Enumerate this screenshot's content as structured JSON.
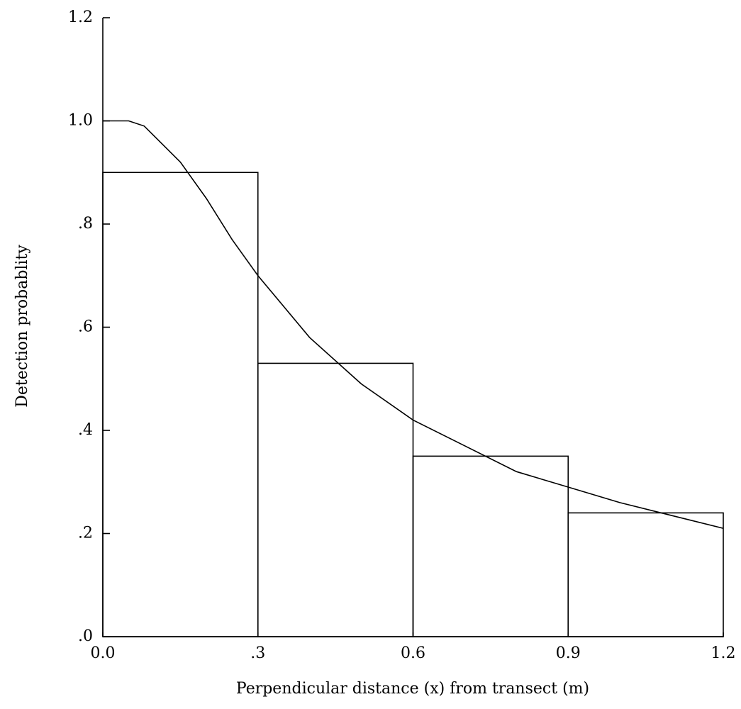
{
  "chart_data": {
    "type": "histogram",
    "xlabel": "Perpendicular distance (x) from transect (m)",
    "ylabel": "Detection probablity",
    "bins": [
      0,
      0.3,
      0.6,
      0.9,
      1.2
    ],
    "values": [
      0.9,
      0.53,
      0.35,
      0.24
    ],
    "color": "#000000",
    "curve": {
      "x": [
        0,
        0.05,
        0.08,
        0.1,
        0.15,
        0.2,
        0.25,
        0.3,
        0.4,
        0.5,
        0.6,
        0.7,
        0.8,
        0.9,
        1.0,
        1.1,
        1.2
      ],
      "values": [
        1.0,
        1.0,
        0.99,
        0.97,
        0.92,
        0.85,
        0.77,
        0.7,
        0.58,
        0.49,
        0.42,
        0.37,
        0.32,
        0.29,
        0.26,
        0.235,
        0.21
      ]
    },
    "xlim": [
      0,
      1.2
    ],
    "xticks": [
      {
        "value": 0,
        "label": "0.0"
      },
      {
        "value": 0.3,
        "label": ".3"
      },
      {
        "value": 0.6,
        "label": "0.6"
      },
      {
        "value": 0.9,
        "label": "0.9"
      },
      {
        "value": 1.2,
        "label": "1.2"
      }
    ],
    "ylim": [
      0,
      1.2
    ],
    "yticks": [
      {
        "value": 0,
        "label": ".0"
      },
      {
        "value": 0.2,
        "label": ".2"
      },
      {
        "value": 0.4,
        "label": ".4"
      },
      {
        "value": 0.6,
        "label": ".6"
      },
      {
        "value": 0.8,
        "label": ".8"
      },
      {
        "value": 1.0,
        "label": "1.0"
      },
      {
        "value": 1.2,
        "label": "1.2"
      }
    ]
  }
}
